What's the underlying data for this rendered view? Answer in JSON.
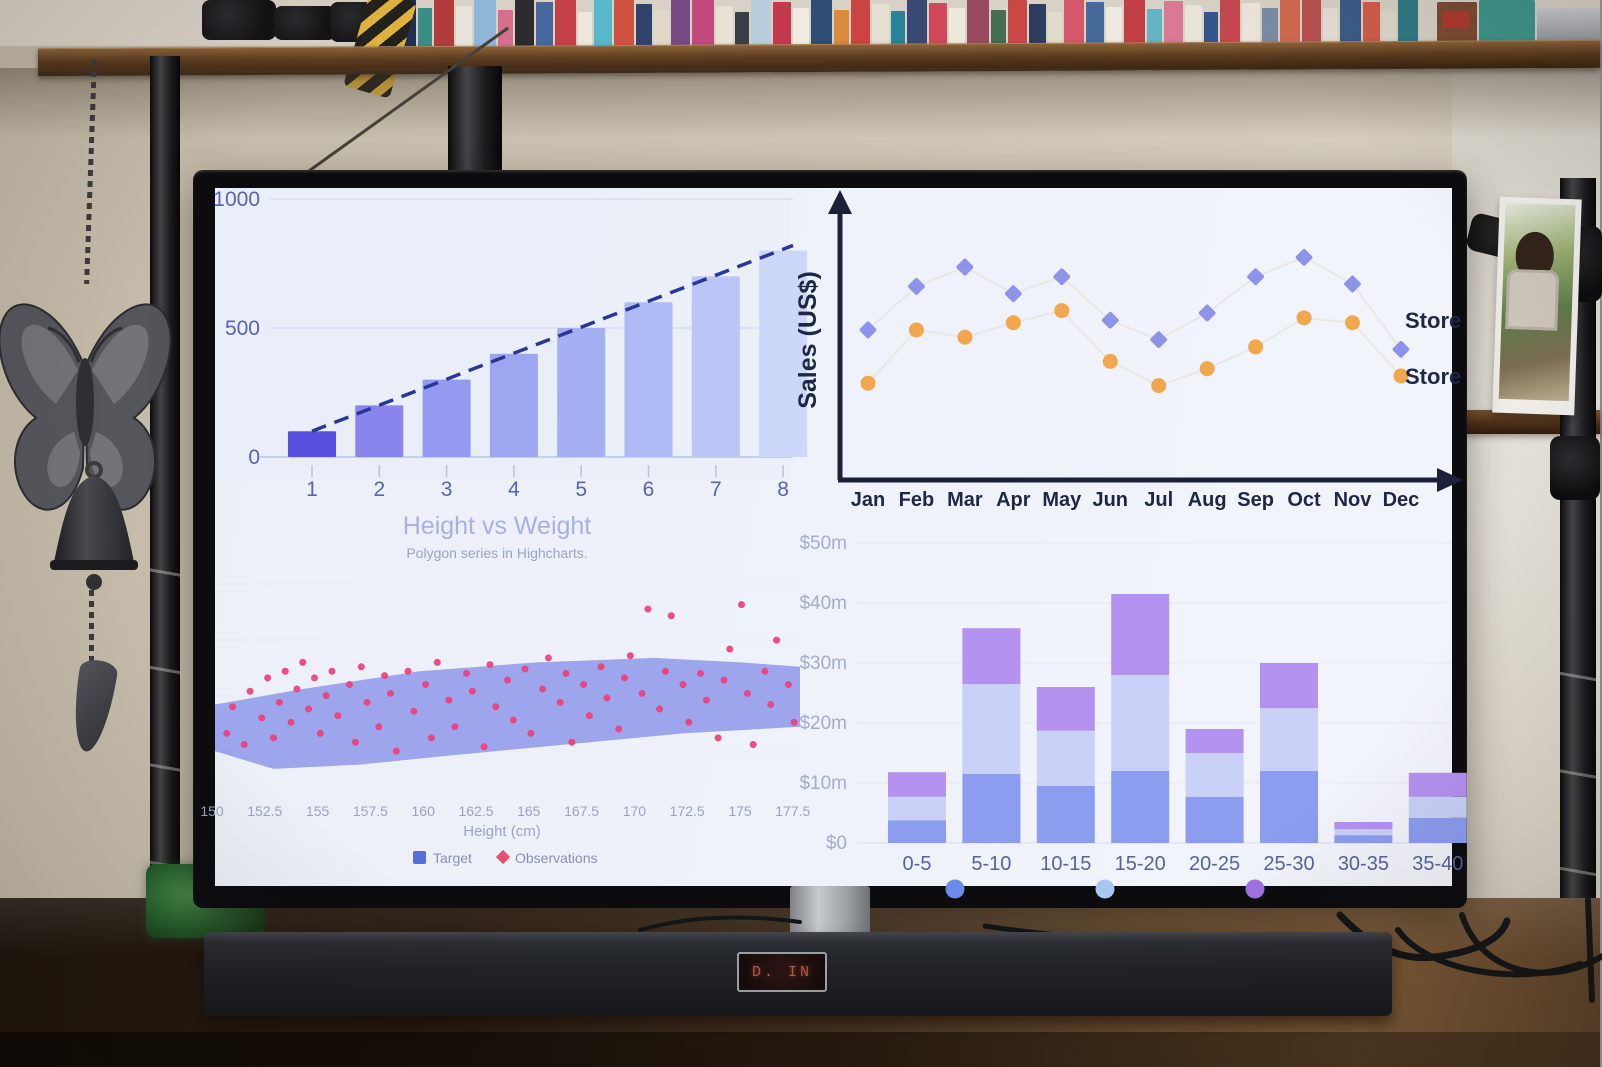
{
  "tv": {
    "soundbar_display": "D. IN"
  },
  "bookshelf": {
    "spines": [
      [
        18,
        50,
        "#20304e"
      ],
      [
        14,
        40,
        "#3b8e86"
      ],
      [
        20,
        52,
        "#b23c3c"
      ],
      [
        16,
        42,
        "#e8e4da"
      ],
      [
        22,
        50,
        "#8fb8d8"
      ],
      [
        15,
        38,
        "#d4708e"
      ],
      [
        19,
        52,
        "#2b2b30"
      ],
      [
        17,
        46,
        "#46689c"
      ],
      [
        21,
        52,
        "#c24046"
      ],
      [
        14,
        36,
        "#ece8de"
      ],
      [
        18,
        48,
        "#58b7c8"
      ],
      [
        20,
        52,
        "#cf5340"
      ],
      [
        16,
        44,
        "#32436b"
      ],
      [
        15,
        38,
        "#e0d9c8"
      ],
      [
        19,
        50,
        "#7a4a84"
      ],
      [
        22,
        52,
        "#c2497e"
      ],
      [
        17,
        42,
        "#e8e2d4"
      ],
      [
        14,
        36,
        "#3a3f47"
      ],
      [
        20,
        50,
        "#b8cede"
      ],
      [
        18,
        46,
        "#c33a4e"
      ],
      [
        16,
        40,
        "#f0ece2"
      ],
      [
        21,
        52,
        "#2f4d74"
      ],
      [
        15,
        38,
        "#d98a3c"
      ],
      [
        19,
        48,
        "#cc4343"
      ],
      [
        17,
        44,
        "#e6e0d2"
      ],
      [
        14,
        37,
        "#27839a"
      ],
      [
        20,
        50,
        "#384a74"
      ],
      [
        18,
        45,
        "#d1485a"
      ],
      [
        16,
        40,
        "#efe9dd"
      ],
      [
        22,
        52,
        "#9a4a5e"
      ],
      [
        15,
        38,
        "#476e52"
      ],
      [
        19,
        48,
        "#c84848"
      ],
      [
        17,
        44,
        "#2e3c5e"
      ],
      [
        14,
        36,
        "#e2dccc"
      ],
      [
        20,
        50,
        "#d4586a"
      ],
      [
        18,
        46,
        "#466a9a"
      ],
      [
        16,
        41,
        "#efeadf"
      ],
      [
        21,
        52,
        "#c23e44"
      ],
      [
        15,
        39,
        "#64b4c4"
      ],
      [
        19,
        47,
        "#d87a94"
      ],
      [
        17,
        43,
        "#e8e4d8"
      ],
      [
        14,
        36,
        "#35558a"
      ],
      [
        20,
        49,
        "#c4474f"
      ],
      [
        18,
        45,
        "#ece6da"
      ],
      [
        16,
        40,
        "#7a8ca4"
      ],
      [
        20,
        50,
        "#cf6a50"
      ],
      [
        19,
        50,
        "#b85050"
      ],
      [
        15,
        40,
        "#e6e0d4"
      ],
      [
        21,
        52,
        "#3c5c88"
      ],
      [
        17,
        46,
        "#cf5d4a"
      ],
      [
        14,
        38,
        "#ded8ca"
      ],
      [
        20,
        50,
        "#2f7a86"
      ]
    ]
  },
  "chart_data": [
    {
      "type": "bar",
      "categories": [
        "1",
        "2",
        "3",
        "4",
        "5",
        "6",
        "7",
        "8"
      ],
      "values": [
        100,
        200,
        300,
        400,
        500,
        600,
        700,
        800
      ],
      "yticks": [
        0,
        500,
        1000
      ],
      "ylim": [
        0,
        1050
      ],
      "bar_colors": [
        "#5a50df",
        "#8a85ed",
        "#939af0",
        "#9da7f1",
        "#a4b0f3",
        "#aebbf4",
        "#b9c6f6",
        "#cdd7f9"
      ],
      "trendline": {
        "x": [
          1,
          8
        ],
        "y": [
          100,
          820
        ],
        "style": "dashed",
        "color": "#2a3796"
      },
      "grid": true,
      "tick_color": "#5565b2"
    },
    {
      "type": "scatter",
      "ylabel": "Sales (US$)",
      "categories": [
        "Jan",
        "Feb",
        "Mar",
        "Apr",
        "May",
        "Jun",
        "Jul",
        "Aug",
        "Sep",
        "Oct",
        "Nov",
        "Dec"
      ],
      "ylim": [
        0,
        100
      ],
      "axis_color": "#1c2038",
      "series": [
        {
          "name": "Store",
          "marker": "diamond",
          "color": "#8d93e9",
          "values": [
            62,
            80,
            88,
            77,
            84,
            66,
            58,
            69,
            84,
            92,
            81,
            54
          ]
        },
        {
          "name": "Store",
          "marker": "circle",
          "color": "#f2a64e",
          "values": [
            40,
            62,
            59,
            65,
            70,
            49,
            39,
            46,
            55,
            67,
            65,
            43
          ]
        }
      ],
      "legend_position": "right-edge-clipped",
      "connector_color": "#e9e5df"
    },
    {
      "type": "scatter",
      "title": "Height vs Weight",
      "subtitle": "Polygon series in Highcharts.",
      "xlabel": "Height (cm)",
      "xticks": [
        "150",
        "152.5",
        "155",
        "157.5",
        "160",
        "162.5",
        "165",
        "167.5",
        "170",
        "172.5",
        "175",
        "177.5"
      ],
      "series": [
        {
          "name": "Target",
          "type": "polygon",
          "color": "#8e99ea",
          "vertices": [
            [
              0,
              22
            ],
            [
              0,
              43
            ],
            [
              15,
              50
            ],
            [
              35,
              58
            ],
            [
              55,
              62
            ],
            [
              75,
              64
            ],
            [
              90,
              62
            ],
            [
              100,
              60
            ],
            [
              100,
              33
            ],
            [
              80,
              30
            ],
            [
              60,
              25
            ],
            [
              40,
              20
            ],
            [
              25,
              16
            ],
            [
              10,
              14
            ]
          ]
        },
        {
          "name": "Observations",
          "marker": "diamond",
          "color": "#ee3f78",
          "points": [
            [
              2,
              30
            ],
            [
              3,
              42
            ],
            [
              5,
              25
            ],
            [
              6,
              49
            ],
            [
              8,
              37
            ],
            [
              9,
              55
            ],
            [
              10,
              28
            ],
            [
              11,
              44
            ],
            [
              12,
              58
            ],
            [
              13,
              35
            ],
            [
              14,
              50
            ],
            [
              15,
              62
            ],
            [
              16,
              41
            ],
            [
              17,
              55
            ],
            [
              18,
              30
            ],
            [
              19,
              47
            ],
            [
              20,
              58
            ],
            [
              21,
              38
            ],
            [
              23,
              52
            ],
            [
              24,
              26
            ],
            [
              25,
              60
            ],
            [
              26,
              44
            ],
            [
              28,
              33
            ],
            [
              29,
              56
            ],
            [
              30,
              48
            ],
            [
              31,
              22
            ],
            [
              33,
              58
            ],
            [
              34,
              40
            ],
            [
              36,
              52
            ],
            [
              37,
              28
            ],
            [
              38,
              62
            ],
            [
              40,
              45
            ],
            [
              41,
              33
            ],
            [
              43,
              57
            ],
            [
              44,
              49
            ],
            [
              46,
              24
            ],
            [
              47,
              61
            ],
            [
              48,
              42
            ],
            [
              50,
              54
            ],
            [
              51,
              36
            ],
            [
              53,
              59
            ],
            [
              54,
              30
            ],
            [
              56,
              50
            ],
            [
              57,
              64
            ],
            [
              59,
              44
            ],
            [
              60,
              57
            ],
            [
              61,
              26
            ],
            [
              63,
              52
            ],
            [
              64,
              38
            ],
            [
              66,
              60
            ],
            [
              67,
              46
            ],
            [
              69,
              32
            ],
            [
              70,
              55
            ],
            [
              71,
              65
            ],
            [
              73,
              48
            ],
            [
              74,
              86
            ],
            [
              76,
              41
            ],
            [
              77,
              58
            ],
            [
              78,
              83
            ],
            [
              80,
              52
            ],
            [
              81,
              35
            ],
            [
              83,
              57
            ],
            [
              84,
              45
            ],
            [
              86,
              28
            ],
            [
              87,
              54
            ],
            [
              88,
              68
            ],
            [
              90,
              88
            ],
            [
              91,
              48
            ],
            [
              92,
              25
            ],
            [
              94,
              58
            ],
            [
              95,
              43
            ],
            [
              96,
              72
            ],
            [
              98,
              52
            ],
            [
              99,
              35
            ]
          ]
        }
      ],
      "legend": [
        {
          "label": "Target",
          "marker": "square",
          "color": "#5a6ed8"
        },
        {
          "label": "Observations",
          "marker": "diamond",
          "color": "#e5506e"
        }
      ],
      "text_colors": {
        "title": "#a8b0e5",
        "subtitle": "#98a4c6",
        "ticks": "#9aa3c2",
        "legend": "#8791b8"
      }
    },
    {
      "type": "stacked-bar",
      "categories": [
        "0-5",
        "5-10",
        "10-15",
        "15-20",
        "20-25",
        "25-30",
        "30-35",
        "35-40"
      ],
      "yticks": [
        "$0",
        "$10m",
        "$20m",
        "$30m",
        "$40m",
        "$50m"
      ],
      "ylim_m": [
        0,
        50
      ],
      "series": [
        {
          "name": "",
          "color": "#8c9cef",
          "values_m": [
            3.8,
            11.5,
            9.5,
            12,
            7.7,
            12,
            1.3,
            4.2
          ]
        },
        {
          "name": "",
          "color": "#c9d1f8",
          "values_m": [
            3.9,
            15,
            9.2,
            16,
            7.3,
            10.5,
            1.0,
            3.5
          ]
        },
        {
          "name": "",
          "color": "#b392f0",
          "values_m": [
            4.1,
            9.3,
            7.3,
            13.5,
            4.0,
            7.5,
            1.2,
            4.0
          ]
        }
      ],
      "totals_m": [
        11.8,
        35.8,
        26,
        41.5,
        19,
        30,
        3.5,
        11.7
      ],
      "legend_marker_colors": [
        "#6a8ce8",
        "#a9c6f2",
        "#a271e3"
      ],
      "legend_note": "legend labels clipped by screen bottom edge",
      "text_colors": {
        "yticks": "#a3adcc",
        "categories": "#55659a"
      }
    }
  ]
}
